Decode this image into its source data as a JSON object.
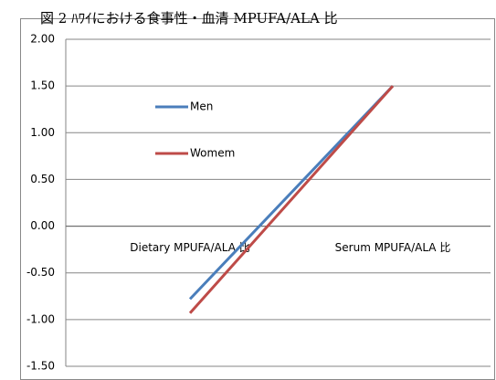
{
  "chart_data": {
    "type": "line",
    "title": "図 2 ﾊﾜｲにおける食事性・血清 MPUFA/ALA 比",
    "categories": [
      "Dietary MPUFA/ALA 比",
      "Serum MPUFA/ALA 比"
    ],
    "series": [
      {
        "name": "Men",
        "color": "#4a7ebb",
        "values": [
          -0.78,
          1.5
        ]
      },
      {
        "name": "Womem",
        "color": "#be4b48",
        "values": [
          -0.93,
          1.5
        ]
      }
    ],
    "ylim": [
      -1.5,
      2.0
    ],
    "yticks": [
      {
        "value": -1.5,
        "label": "-1.50"
      },
      {
        "value": -1.0,
        "label": "-1.00"
      },
      {
        "value": -0.5,
        "label": "-0.50"
      },
      {
        "value": 0,
        "label": "0.00"
      },
      {
        "value": 0.5,
        "label": "0.50"
      },
      {
        "value": 1.0,
        "label": "1.00"
      },
      {
        "value": 1.5,
        "label": "1.50"
      },
      {
        "value": 2.0,
        "label": "2.00"
      }
    ],
    "grid": true
  }
}
